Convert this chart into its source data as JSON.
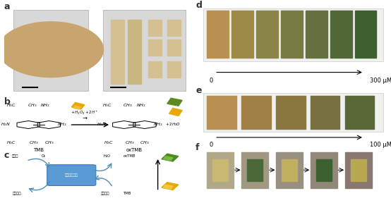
{
  "bg_color": "#f0f0f0",
  "label_a": "a",
  "label_b": "b",
  "label_c": "c",
  "label_d": "d",
  "label_e": "e",
  "label_f": "f",
  "box_color": "#5b9bd5",
  "box_text": "葫葱糖氧化酶",
  "glucose_text": "葫葱糖",
  "gluconolactone_text": "葫葱糖酸",
  "o2_text": "O₂",
  "h2o_text": "H₂O",
  "h2o2_text": "过氧化氢",
  "oxtmb_arrow_text": "oxTMB",
  "tmb_arrow_text": "TMB",
  "disk_color": "#c8a46e",
  "disk_texture": "#b89458",
  "photo_bg": "#e8e8e8",
  "piece_color": "#d4c090",
  "piece_color2": "#c8b880",
  "strip_bg": "#f5f5f5",
  "square_colors_d": [
    "#b89050",
    "#9e8a48",
    "#8a8448",
    "#787a44",
    "#647040",
    "#506838",
    "#3e6030"
  ],
  "square_colors_e": [
    "#b89050",
    "#a08045",
    "#8a7840",
    "#787040",
    "#5a6838"
  ],
  "square_colors_f_outer": [
    "#b0a888",
    "#a09880",
    "#989080",
    "#908878",
    "#887870"
  ],
  "square_colors_f_inner": [
    "#c8b870",
    "#4a6838",
    "#c0b060",
    "#3d6030",
    "#b8a850"
  ]
}
